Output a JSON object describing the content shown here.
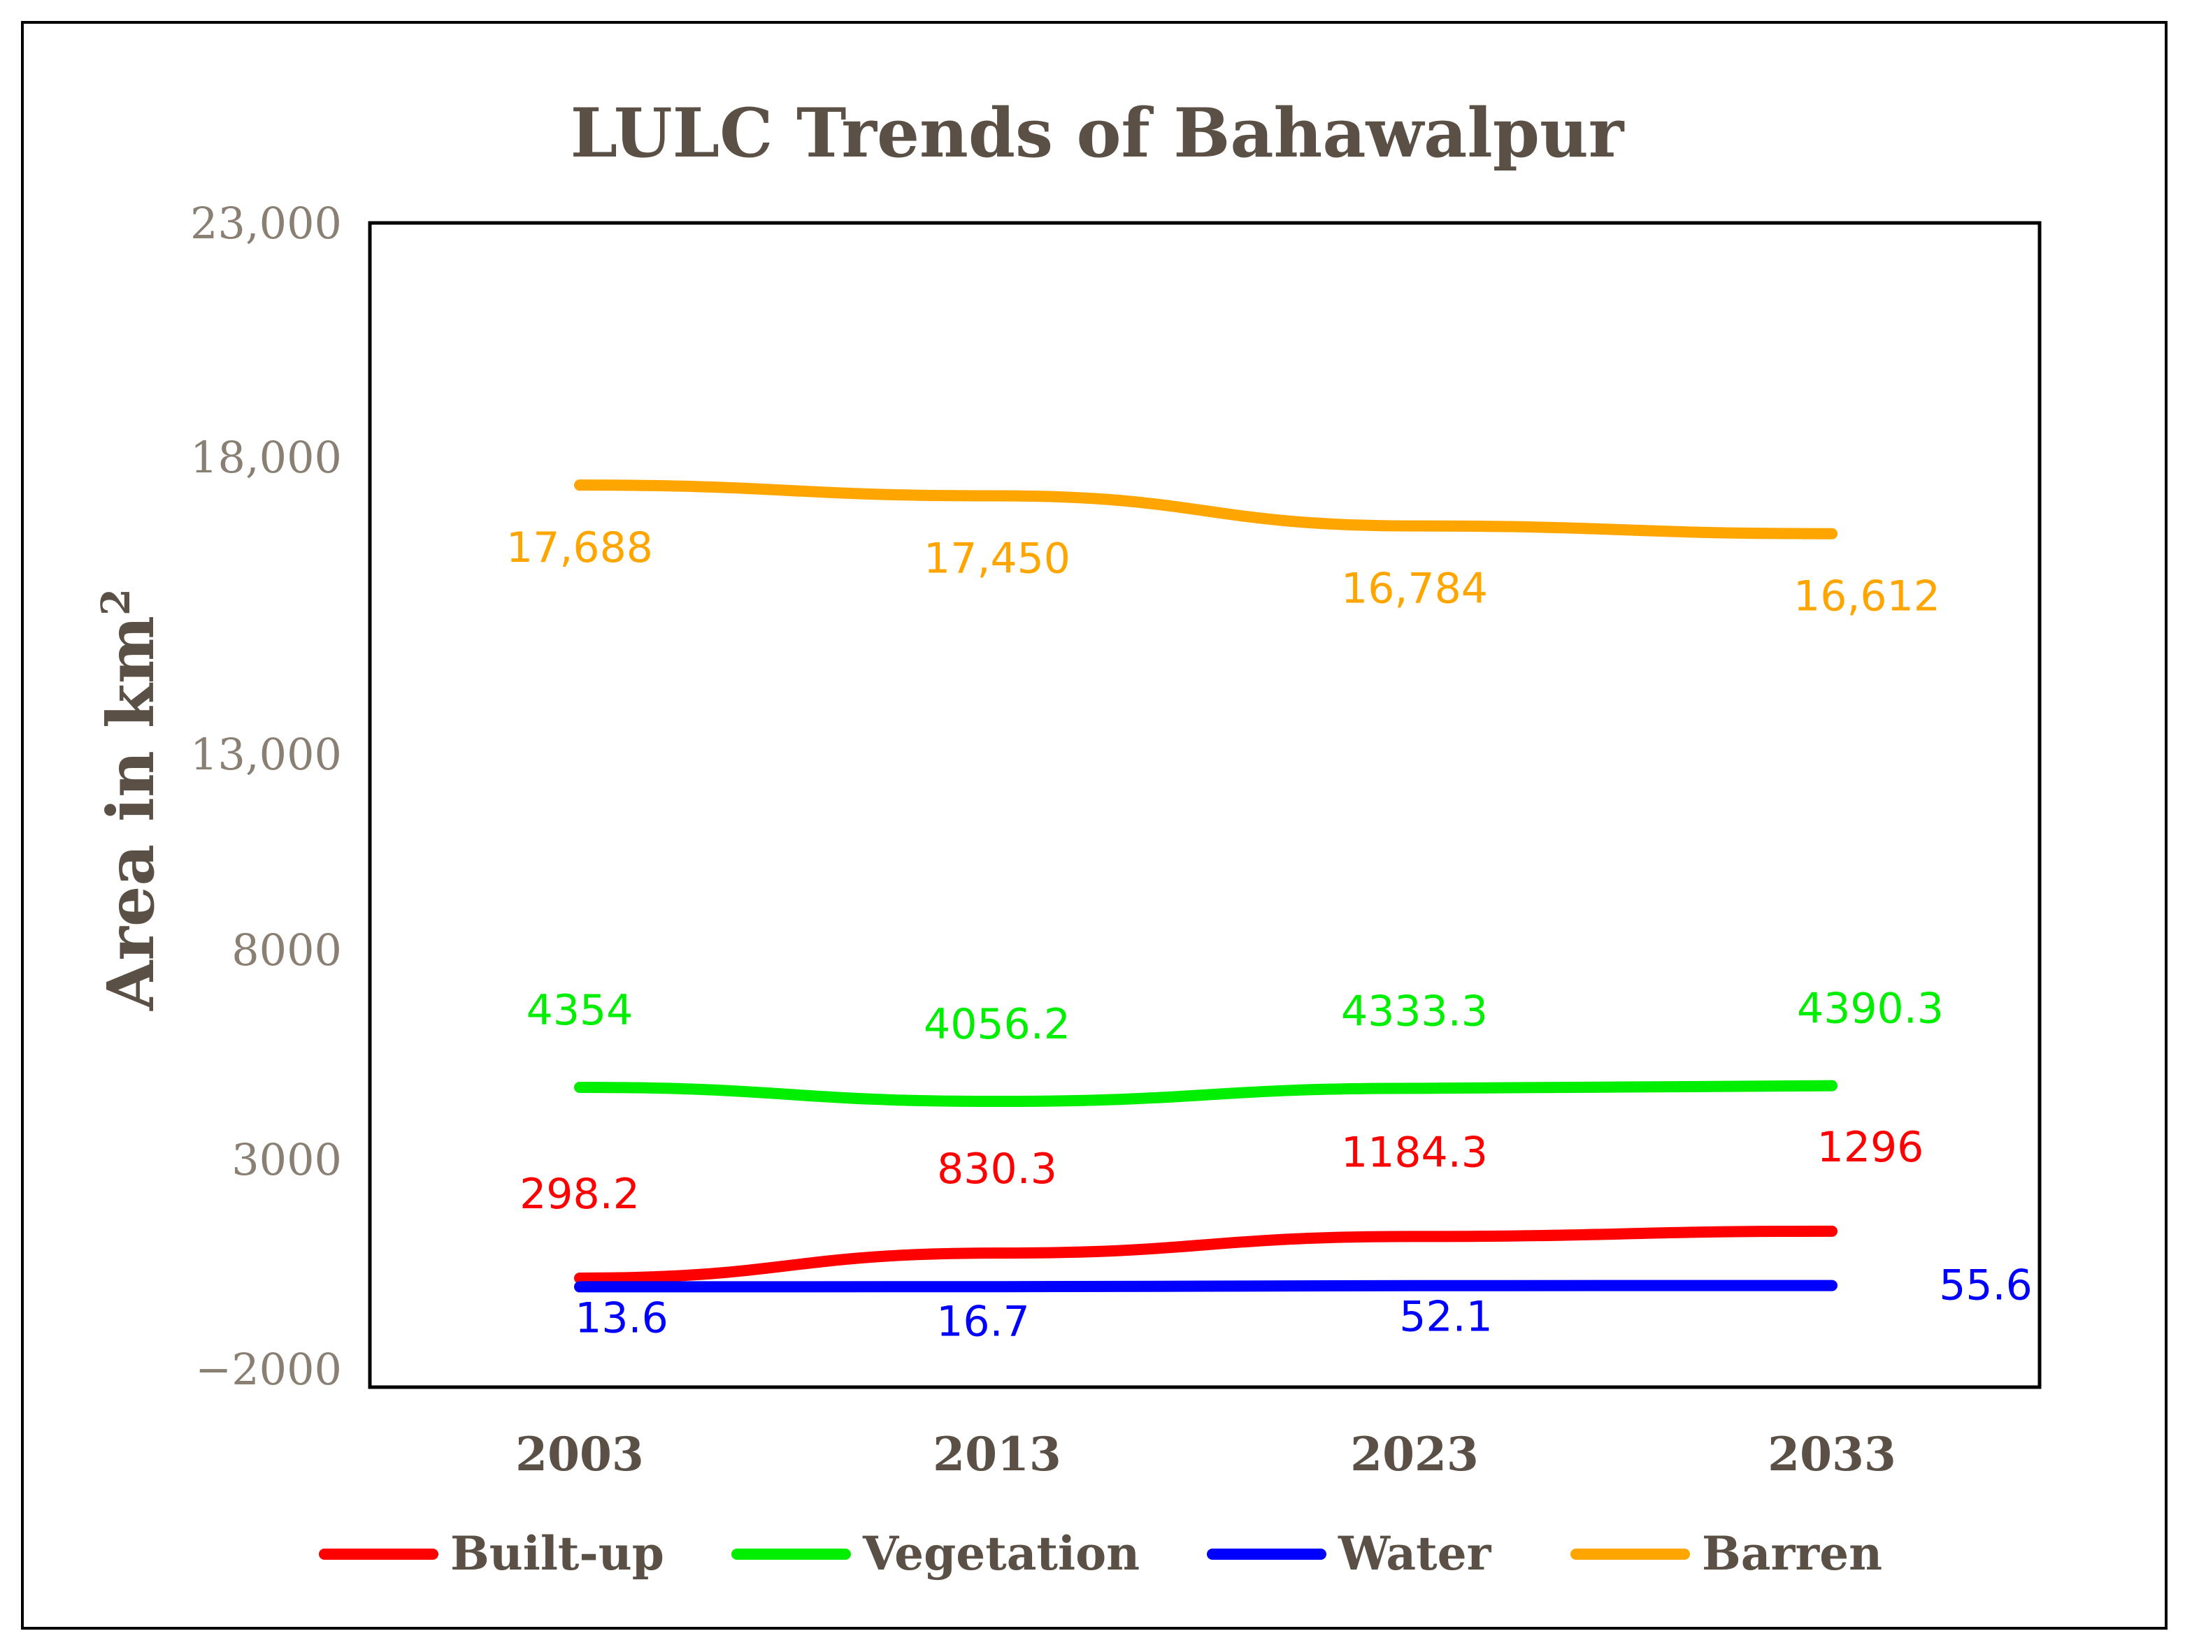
{
  "chart_data": {
    "type": "line",
    "title": "LULC Trends of Bahawalpur",
    "xlabel": "",
    "ylabel": "Area in km",
    "ylabel_superscript": "2",
    "ylim": [
      -2000,
      23000
    ],
    "y_ticks": [
      23000,
      18000,
      13000,
      8000,
      3000,
      -2000
    ],
    "y_tick_labels": [
      "23,000",
      "18,000",
      "13,000",
      "8000",
      "3000",
      "−2000"
    ],
    "categories": [
      "2003",
      "2013",
      "2023",
      "2033"
    ],
    "series": [
      {
        "name": "Built-up",
        "color": "#ff0000",
        "values": [
          298.2,
          830.3,
          1184.3,
          1296
        ],
        "labels": [
          "298.2",
          "830.3",
          "1184.3",
          "1296"
        ]
      },
      {
        "name": "Vegetation",
        "color": "#00ee00",
        "values": [
          4354,
          4056.2,
          4333.3,
          4390.3
        ],
        "labels": [
          "4354",
          "4056.2",
          "4333.3",
          "4390.3"
        ]
      },
      {
        "name": "Water",
        "color": "#0000ff",
        "values": [
          13.6,
          16.7,
          52.1,
          55.6
        ],
        "labels": [
          "13.6",
          "16.7",
          "52.1",
          "55.6"
        ]
      },
      {
        "name": "Barren",
        "color": "#ffa500",
        "values": [
          17688,
          17450,
          16784,
          16612
        ],
        "labels": [
          "17,688",
          "17,450",
          "16,784",
          "16,612"
        ]
      }
    ],
    "legend_position": "bottom",
    "grid": false
  }
}
